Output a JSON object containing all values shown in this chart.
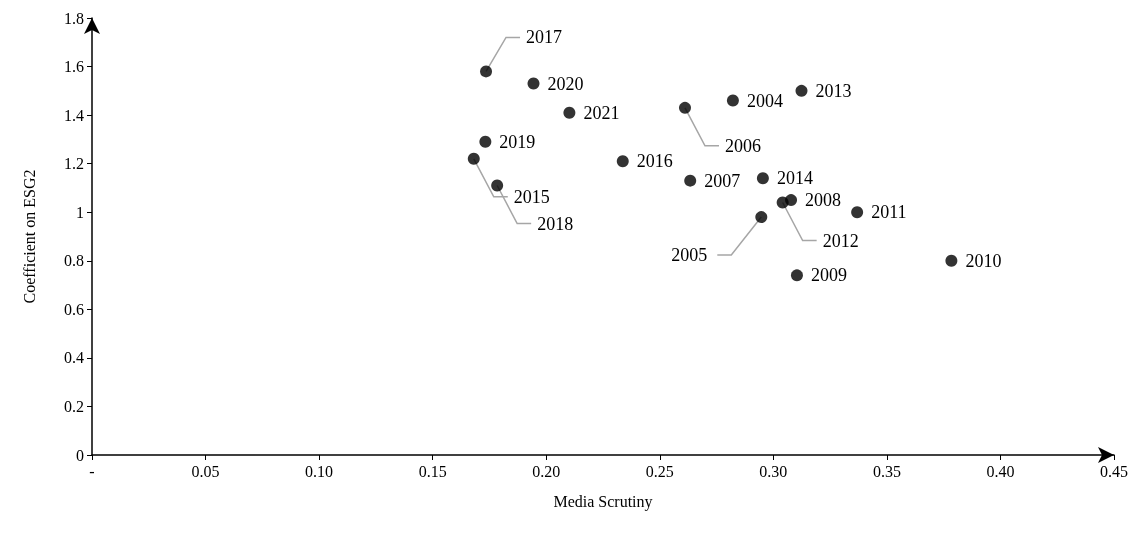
{
  "chart_data": {
    "type": "scatter",
    "xlabel": "Media Scrutiny",
    "ylabel": "Coefficient on ESG2",
    "x": [
      0.1735,
      0.1944,
      0.2102,
      0.2611,
      0.2822,
      0.3124,
      0.1732,
      0.1681,
      0.2337,
      0.1784,
      0.2634,
      0.2954,
      0.3078,
      0.3041,
      0.2947,
      0.3369,
      0.3104,
      0.3784
    ],
    "series": [
      {
        "color": "#000000",
        "values": [
          1.58,
          1.53,
          1.41,
          1.43,
          1.46,
          1.5,
          1.29,
          1.22,
          1.21,
          1.11,
          1.13,
          1.14,
          1.05,
          1.04,
          0.98,
          1.0,
          0.74,
          0.8
        ]
      }
    ],
    "annotations": [
      {
        "text": "2017",
        "x": 0.1735,
        "y": 1.58
      },
      {
        "text": "2020",
        "x": 0.1944,
        "y": 1.53
      },
      {
        "text": "2021",
        "x": 0.2102,
        "y": 1.41
      },
      {
        "text": "2006",
        "x": 0.2611,
        "y": 1.43
      },
      {
        "text": "2004",
        "x": 0.2822,
        "y": 1.46
      },
      {
        "text": "2013",
        "x": 0.3124,
        "y": 1.5
      },
      {
        "text": "2019",
        "x": 0.1732,
        "y": 1.29
      },
      {
        "text": "2015",
        "x": 0.1681,
        "y": 1.22
      },
      {
        "text": "2016",
        "x": 0.2337,
        "y": 1.21
      },
      {
        "text": "2018",
        "x": 0.1784,
        "y": 1.11
      },
      {
        "text": "2007",
        "x": 0.2634,
        "y": 1.13
      },
      {
        "text": "2014",
        "x": 0.2954,
        "y": 1.14
      },
      {
        "text": "2008",
        "x": 0.3078,
        "y": 1.05
      },
      {
        "text": "2012",
        "x": 0.3041,
        "y": 1.04
      },
      {
        "text": "2005",
        "x": 0.2947,
        "y": 0.98
      },
      {
        "text": "2011",
        "x": 0.3369,
        "y": 1.0
      },
      {
        "text": "2009",
        "x": 0.3104,
        "y": 0.74
      },
      {
        "text": "2010",
        "x": 0.3784,
        "y": 0.8
      }
    ],
    "xlim": [
      0,
      0.45
    ],
    "xticks": [
      {
        "value": 0,
        "label": "-"
      },
      {
        "value": 0.05,
        "label": "0.05"
      },
      {
        "value": 0.1,
        "label": "0.10"
      },
      {
        "value": 0.15,
        "label": "0.15"
      },
      {
        "value": 0.2,
        "label": "0.20"
      },
      {
        "value": 0.25,
        "label": "0.25"
      },
      {
        "value": 0.3,
        "label": "0.30"
      },
      {
        "value": 0.35,
        "label": "0.35"
      },
      {
        "value": 0.4,
        "label": "0.40"
      },
      {
        "value": 0.45,
        "label": "0.45"
      }
    ],
    "ylim": [
      0,
      1.8
    ],
    "yticks": [
      0,
      0.2,
      0.4,
      0.6,
      0.8,
      1,
      1.2,
      1.4,
      1.6,
      1.8
    ],
    "grid": false,
    "legend": false,
    "marker": "circle"
  }
}
